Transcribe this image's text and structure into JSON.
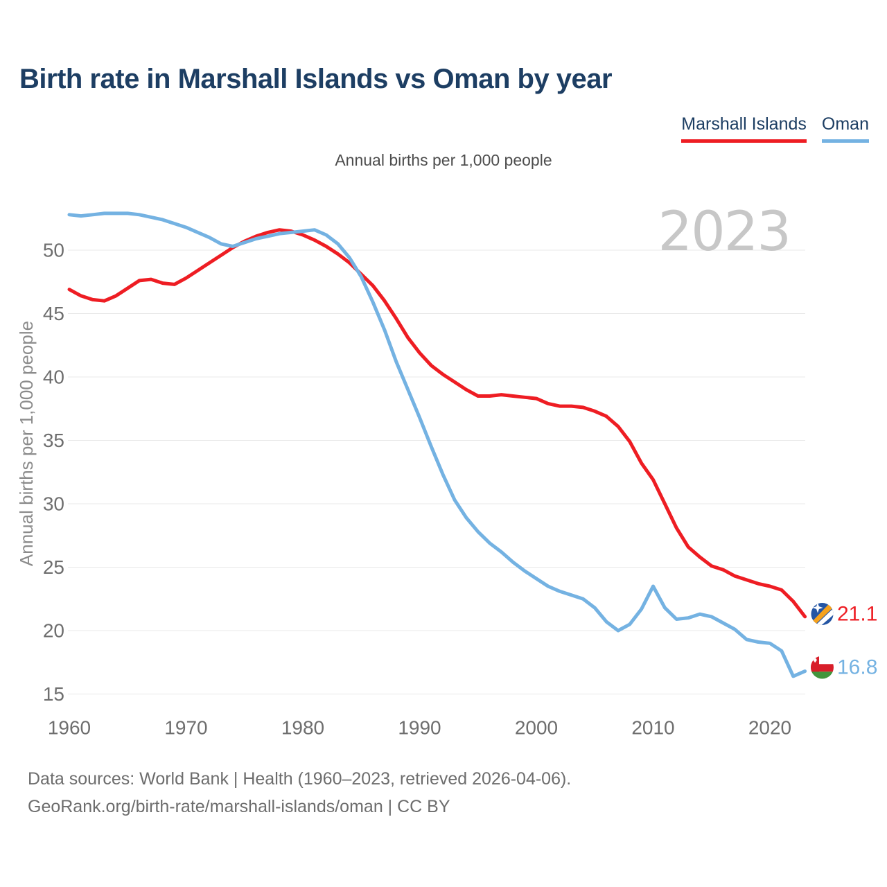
{
  "header": {
    "title": "Birth rate in Marshall Islands vs Oman by year"
  },
  "watermark": {
    "year": "2023"
  },
  "chart_data": {
    "type": "line",
    "title": "Birth rate in Marshall Islands vs Oman by year",
    "subtitle": "Annual births per 1,000 people",
    "ylabel": "Annual births per 1,000 people",
    "x": [
      1960,
      1961,
      1962,
      1963,
      1964,
      1965,
      1966,
      1967,
      1968,
      1969,
      1970,
      1971,
      1972,
      1973,
      1974,
      1975,
      1976,
      1977,
      1978,
      1979,
      1980,
      1981,
      1982,
      1983,
      1984,
      1985,
      1986,
      1987,
      1988,
      1989,
      1990,
      1991,
      1992,
      1993,
      1994,
      1995,
      1996,
      1997,
      1998,
      1999,
      2000,
      2001,
      2002,
      2003,
      2004,
      2005,
      2006,
      2007,
      2008,
      2009,
      2010,
      2011,
      2012,
      2013,
      2014,
      2015,
      2016,
      2017,
      2018,
      2019,
      2020,
      2021,
      2022,
      2023
    ],
    "series": [
      {
        "name": "Marshall Islands",
        "color": "#ee1d23",
        "end_label": "21.1",
        "flag_icon": "marshall-islands-flag",
        "values": [
          46.9,
          46.4,
          46.1,
          46.0,
          46.4,
          47.0,
          47.6,
          47.7,
          47.4,
          47.3,
          47.8,
          48.4,
          49.0,
          49.6,
          50.2,
          50.7,
          51.1,
          51.4,
          51.6,
          51.5,
          51.2,
          50.8,
          50.3,
          49.7,
          49.0,
          48.1,
          47.2,
          46.0,
          44.6,
          43.1,
          41.9,
          40.9,
          40.2,
          39.6,
          39.0,
          38.5,
          38.5,
          38.6,
          38.5,
          38.4,
          38.3,
          37.9,
          37.7,
          37.7,
          37.6,
          37.3,
          36.9,
          36.1,
          34.9,
          33.2,
          31.9,
          30.0,
          28.1,
          26.6,
          25.8,
          25.1,
          24.8,
          24.3,
          24.0,
          23.7,
          23.5,
          23.2,
          22.3,
          21.1
        ]
      },
      {
        "name": "Oman",
        "color": "#74b2e2",
        "end_label": "16.8",
        "flag_icon": "oman-flag",
        "values": [
          52.8,
          52.7,
          52.8,
          52.9,
          52.9,
          52.9,
          52.8,
          52.6,
          52.4,
          52.1,
          51.8,
          51.4,
          51.0,
          50.5,
          50.3,
          50.6,
          50.9,
          51.1,
          51.3,
          51.4,
          51.5,
          51.6,
          51.2,
          50.5,
          49.4,
          47.9,
          45.9,
          43.7,
          41.2,
          39.0,
          36.8,
          34.5,
          32.3,
          30.3,
          28.9,
          27.8,
          26.9,
          26.2,
          25.4,
          24.7,
          24.1,
          23.5,
          23.1,
          22.8,
          22.5,
          21.8,
          20.7,
          20.0,
          20.5,
          21.7,
          23.5,
          21.8,
          20.9,
          21.0,
          21.3,
          21.1,
          20.6,
          20.1,
          19.3,
          19.1,
          19.0,
          18.4,
          16.4,
          16.8
        ]
      }
    ],
    "xticks": [
      1960,
      1970,
      1980,
      1990,
      2000,
      2010,
      2020
    ],
    "yticks": [
      50,
      45,
      40,
      35,
      30,
      25,
      20,
      15
    ],
    "xlim": [
      1960,
      2023
    ],
    "ylim": [
      15,
      53
    ],
    "grid": true,
    "legend_position": "top-right",
    "watermark": "2023"
  },
  "footer": {
    "line1": "Data sources: World Bank | Health (1960–2023, retrieved 2026-04-06).",
    "line2": "GeoRank.org/birth-rate/marshall-islands/oman | CC BY"
  }
}
